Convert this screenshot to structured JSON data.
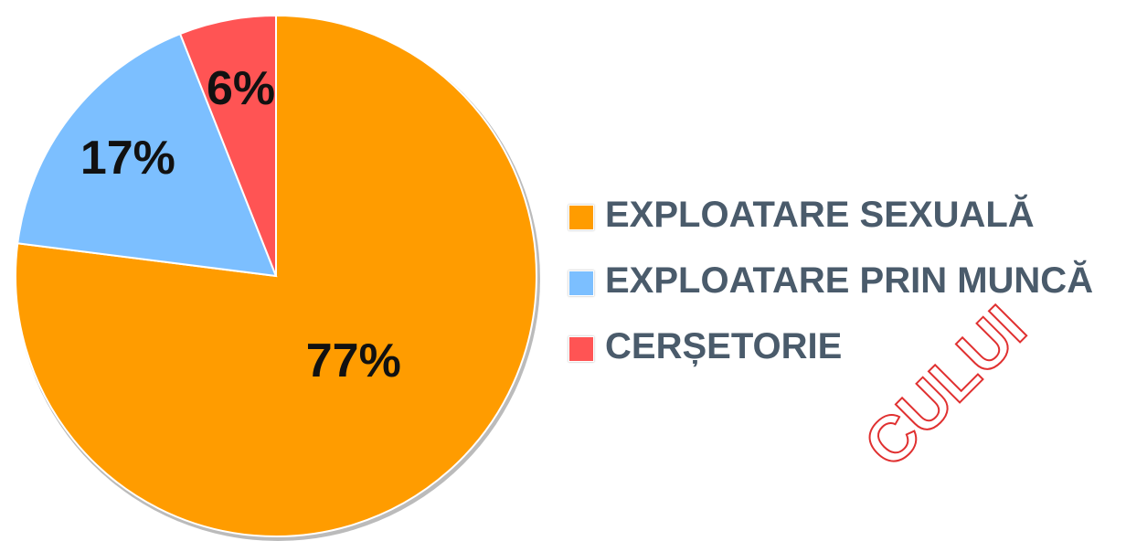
{
  "chart_data": {
    "type": "pie",
    "categories": [
      "EXPLOATARE SEXUALĂ",
      "EXPLOATARE PRIN MUNCĂ",
      "CERȘETORIE"
    ],
    "values": [
      77,
      17,
      6
    ],
    "value_labels": [
      "77%",
      "17%",
      "6%"
    ],
    "colors": [
      "#ff9c00",
      "#7cbfff",
      "#ff5454"
    ],
    "legend": "right",
    "watermark": "CULUI"
  }
}
